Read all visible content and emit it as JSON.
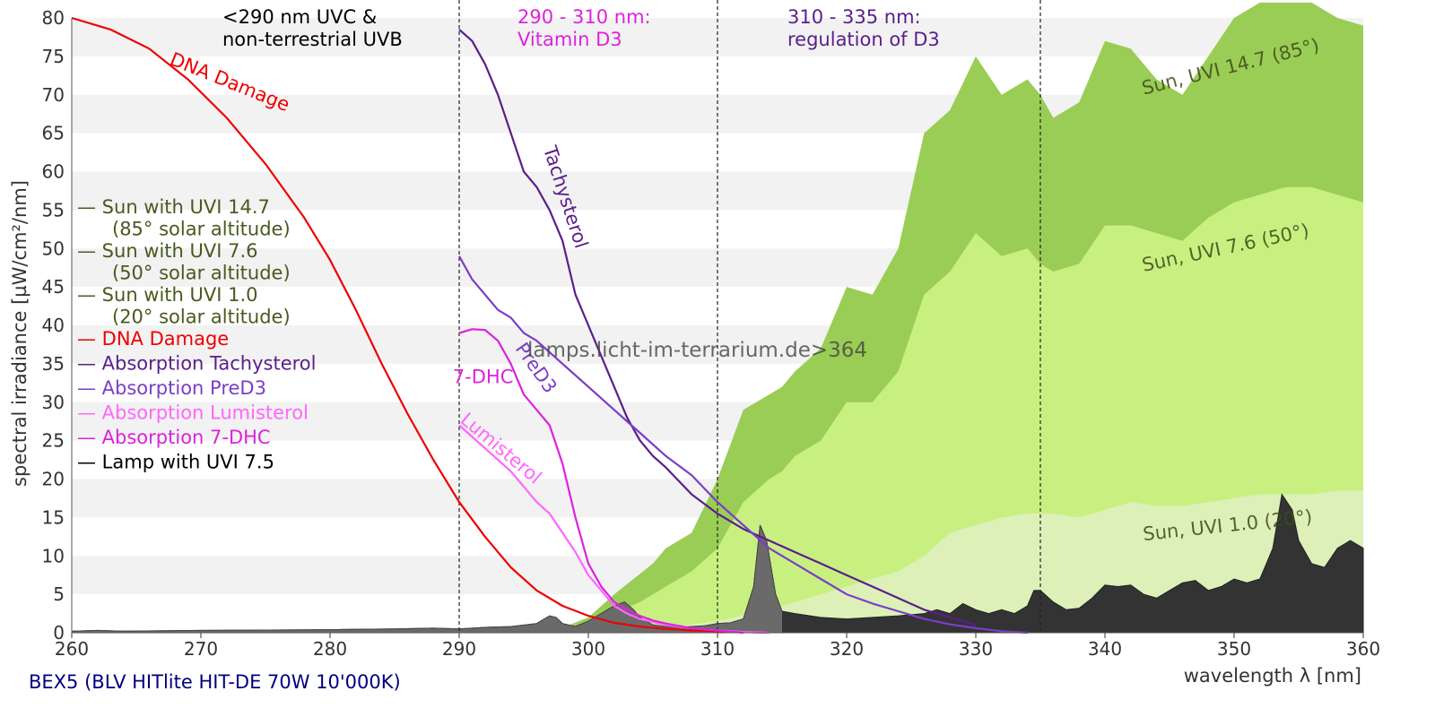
{
  "chart_data": {
    "type": "area",
    "xlabel": "wavelength λ [nm]",
    "ylabel": "spectral irradiance [µW/cm²/nm]",
    "xlim": [
      260,
      360
    ],
    "ylim": [
      0,
      80
    ],
    "x_ticks": [
      260,
      270,
      280,
      290,
      300,
      310,
      320,
      330,
      340,
      350,
      360
    ],
    "y_ticks": [
      0,
      5,
      10,
      15,
      20,
      25,
      30,
      35,
      40,
      45,
      50,
      55,
      60,
      65,
      70,
      75,
      80
    ],
    "grid": "horizontal alternating bands",
    "legend_position": "left",
    "footer": "BEX5 (BLV HITlite HIT-DE 70W 10'000K)",
    "watermark": "lamps.licht-im-terrarium.de>364",
    "regions": [
      {
        "x": 290,
        "lines": [
          "<290 nm UVC &",
          "non-terrestrial UVB"
        ],
        "color": "#000000"
      },
      {
        "x": 310,
        "lines": [
          "290 - 310 nm:",
          "Vitamin D3"
        ],
        "color": "#dd22dd"
      },
      {
        "x": 335,
        "lines": [
          "310 - 335 nm:",
          "regulation of D3"
        ],
        "color": "#5a1e8c"
      }
    ],
    "legend": [
      {
        "lines": [
          "— Sun with UVI 14.7",
          "(85° solar altitude)"
        ],
        "color": "#4a5a1e"
      },
      {
        "lines": [
          "— Sun with UVI 7.6",
          "(50° solar altitude)"
        ],
        "color": "#4a5a1e"
      },
      {
        "lines": [
          "— Sun with UVI 1.0",
          "(20° solar altitude)"
        ],
        "color": "#4a5a1e"
      },
      {
        "lines": [
          "— DNA Damage"
        ],
        "color": "#ee0000"
      },
      {
        "lines": [
          "— Absorption Tachysterol"
        ],
        "color": "#5a1e8c"
      },
      {
        "lines": [
          "— Absorption PreD3"
        ],
        "color": "#7a3ec8"
      },
      {
        "lines": [
          "— Absorption Lumisterol"
        ],
        "color": "#ff66ff"
      },
      {
        "lines": [
          "— Absorption 7-DHC"
        ],
        "color": "#dd22dd"
      },
      {
        "lines": [
          "— Lamp with UVI 7.5"
        ],
        "color": "#000000"
      }
    ],
    "series": [
      {
        "name": "Sun with UVI 14.7",
        "kind": "area",
        "color": "#9acd55",
        "label": {
          "text": "Sun, UVI 14.7 (85°)",
          "x": 343,
          "y": 70,
          "rotate": -14
        },
        "x": [
          297,
          300,
          302,
          305,
          306,
          308,
          310,
          312,
          314,
          315,
          316,
          318,
          320,
          322,
          324,
          326,
          328,
          330,
          332,
          334,
          335,
          336,
          338,
          340,
          342,
          344,
          346,
          348,
          350,
          352,
          354,
          356,
          358,
          360
        ],
        "y": [
          0,
          2,
          5,
          9,
          11,
          13,
          20,
          29,
          31,
          32,
          34,
          37,
          45,
          44,
          50,
          65,
          68,
          75,
          70,
          72,
          70,
          67,
          69,
          77,
          76,
          72,
          70,
          75,
          80,
          82,
          84,
          83,
          80,
          79
        ]
      },
      {
        "name": "Sun with UVI 7.6",
        "kind": "area",
        "color": "#c8f080",
        "label": {
          "text": "Sun, UVI 7.6 (50°)",
          "x": 343,
          "y": 47,
          "rotate": -12
        },
        "x": [
          298,
          300,
          302,
          304,
          306,
          308,
          310,
          312,
          314,
          315,
          316,
          318,
          320,
          322,
          324,
          326,
          328,
          330,
          332,
          334,
          335,
          336,
          338,
          340,
          342,
          344,
          346,
          348,
          350,
          352,
          354,
          356,
          358,
          360
        ],
        "y": [
          0,
          1,
          2.5,
          4,
          6,
          8,
          11,
          17,
          20,
          21,
          23,
          25,
          30,
          30,
          34,
          44,
          47,
          52,
          49,
          50,
          48,
          47,
          48,
          53,
          53,
          52,
          51,
          54,
          56,
          57,
          58,
          58,
          57,
          56
        ]
      },
      {
        "name": "Sun with UVI 1.0",
        "kind": "area",
        "color": "#dcf0b8",
        "label": {
          "text": "Sun, UVI 1.0 (20°)",
          "x": 343,
          "y": 12,
          "rotate": -6
        },
        "x": [
          300,
          305,
          310,
          315,
          320,
          324,
          326,
          328,
          330,
          332,
          334,
          335,
          336,
          338,
          340,
          342,
          344,
          346,
          348,
          350,
          352,
          354,
          356,
          358,
          360
        ],
        "y": [
          0,
          0.5,
          1.5,
          3.5,
          6,
          8,
          10,
          13,
          14,
          15,
          15.5,
          15.5,
          15.5,
          15,
          16,
          17,
          16.5,
          16.5,
          17,
          17.5,
          18,
          18,
          18,
          18.5,
          18.5
        ]
      },
      {
        "name": "Lamp with UVI 7.5",
        "kind": "area",
        "color": "#333333",
        "x": [
          260,
          262,
          264,
          270,
          280,
          285,
          288,
          290,
          292,
          294,
          296,
          297,
          297.5,
          298,
          299,
          300,
          301,
          302,
          302.8,
          303.5,
          304,
          305,
          306,
          307,
          308,
          309,
          310,
          311,
          312,
          312.8,
          313.3,
          313.8,
          314.5,
          315,
          316,
          318,
          320,
          322,
          324,
          326,
          327,
          328,
          329,
          330,
          331,
          332,
          333,
          334,
          334.5,
          335,
          336,
          337,
          338,
          339,
          340,
          341,
          342,
          343,
          344,
          345,
          346,
          347,
          348,
          349,
          350,
          351,
          352,
          353,
          353.7,
          354.5,
          355,
          356,
          357,
          358,
          359,
          360
        ],
        "y": [
          0.2,
          0.3,
          0.2,
          0.3,
          0.4,
          0.5,
          0.6,
          0.5,
          0.7,
          0.8,
          1.2,
          2.2,
          2.0,
          1.2,
          0.8,
          1.5,
          2.5,
          3.5,
          4.0,
          3.0,
          2.0,
          1.0,
          0.8,
          0.7,
          0.8,
          0.9,
          1.2,
          1.3,
          1.8,
          6.0,
          14.0,
          12.0,
          5.0,
          2.8,
          2.5,
          2.0,
          1.8,
          2.0,
          2.2,
          2.5,
          3.0,
          2.5,
          3.8,
          3.0,
          2.5,
          3.0,
          2.5,
          3.5,
          5.5,
          5.5,
          4.0,
          3.0,
          3.2,
          4.5,
          6.2,
          6.0,
          6.2,
          5.0,
          4.5,
          5.5,
          6.5,
          6.8,
          5.5,
          6.0,
          7.0,
          6.5,
          7.0,
          11.0,
          18.0,
          16.0,
          12.0,
          9.0,
          8.5,
          11.0,
          12.0,
          11.0
        ]
      },
      {
        "name": "DNA Damage",
        "kind": "line",
        "color": "#ee0000",
        "label": {
          "text": "DNA Damage",
          "x": 267.5,
          "y": 74,
          "rotate": 22
        },
        "x": [
          260,
          263,
          266,
          269,
          272,
          275,
          278,
          280,
          282,
          284,
          286,
          288,
          290,
          292,
          294,
          296,
          298,
          300,
          302,
          304,
          306,
          308,
          310,
          312,
          314
        ],
        "y": [
          80,
          78.5,
          76,
          72,
          67,
          61,
          54,
          48.5,
          42,
          35,
          28.5,
          22.5,
          17,
          12.5,
          8.5,
          5.5,
          3.5,
          2.2,
          1.3,
          0.8,
          0.5,
          0.3,
          0.2,
          0.1,
          0
        ]
      },
      {
        "name": "Absorption Tachysterol",
        "kind": "line",
        "color": "#5a1e8c",
        "label": {
          "text": "Tachysterol",
          "x": 296.5,
          "y": 63,
          "rotate": 72
        },
        "x": [
          290,
          291,
          292,
          293,
          294,
          295,
          296,
          297,
          298,
          299,
          300,
          301,
          302,
          303,
          304,
          305,
          306,
          308,
          310,
          312,
          314,
          316,
          318,
          320,
          322,
          324,
          326,
          328,
          330
        ],
        "y": [
          78.5,
          77,
          74,
          70,
          65,
          60,
          58,
          55,
          51,
          44,
          40,
          36,
          32,
          28,
          25,
          23,
          21.5,
          18,
          15.5,
          13.5,
          12,
          10.5,
          9,
          7.5,
          6,
          4.5,
          3,
          2,
          1
        ]
      },
      {
        "name": "Absorption PreD3",
        "kind": "line",
        "color": "#7a3ec8",
        "label": {
          "text": "PreD3",
          "x": 294.3,
          "y": 37,
          "rotate": 55
        },
        "x": [
          290,
          291,
          292,
          293,
          294,
          295,
          296,
          298,
          300,
          302,
          304,
          306,
          308,
          310,
          312,
          314,
          316,
          318,
          320,
          322,
          324,
          326,
          328,
          330,
          332,
          334
        ],
        "y": [
          49,
          46,
          44,
          42,
          41,
          39,
          38,
          35,
          32,
          29,
          26,
          23,
          20.5,
          17,
          14,
          11,
          9,
          7,
          5,
          3.8,
          2.8,
          1.8,
          1.1,
          0.6,
          0.2,
          0
        ]
      },
      {
        "name": "Absorption Lumisterol",
        "kind": "line",
        "color": "#ff66ff",
        "label": {
          "text": "Lumisterol",
          "x": 290,
          "y": 27.5,
          "rotate": 40
        },
        "x": [
          290,
          292,
          294,
          296,
          297,
          298,
          299,
          300,
          301,
          302,
          303,
          304,
          306,
          308,
          310,
          312,
          314
        ],
        "y": [
          27,
          24,
          21,
          17,
          15.5,
          13,
          10.5,
          7.5,
          5.5,
          3.5,
          2.5,
          1.8,
          1.0,
          0.6,
          0.3,
          0.1,
          0
        ]
      },
      {
        "name": "Absorption 7-DHC",
        "kind": "line",
        "color": "#dd22dd",
        "label": {
          "text": "7-DHC",
          "x": 289.5,
          "y": 32.5,
          "rotate": 0
        },
        "x": [
          290,
          291,
          292,
          293,
          294,
          295,
          296,
          297,
          298,
          299,
          300,
          301,
          302,
          303,
          304,
          305,
          306,
          307,
          308,
          310,
          312
        ],
        "y": [
          39,
          39.5,
          39.4,
          38,
          35,
          31,
          29,
          27,
          22,
          15,
          9,
          6,
          4,
          3,
          2.2,
          1.6,
          1.2,
          0.9,
          0.6,
          0.3,
          0
        ]
      }
    ]
  }
}
